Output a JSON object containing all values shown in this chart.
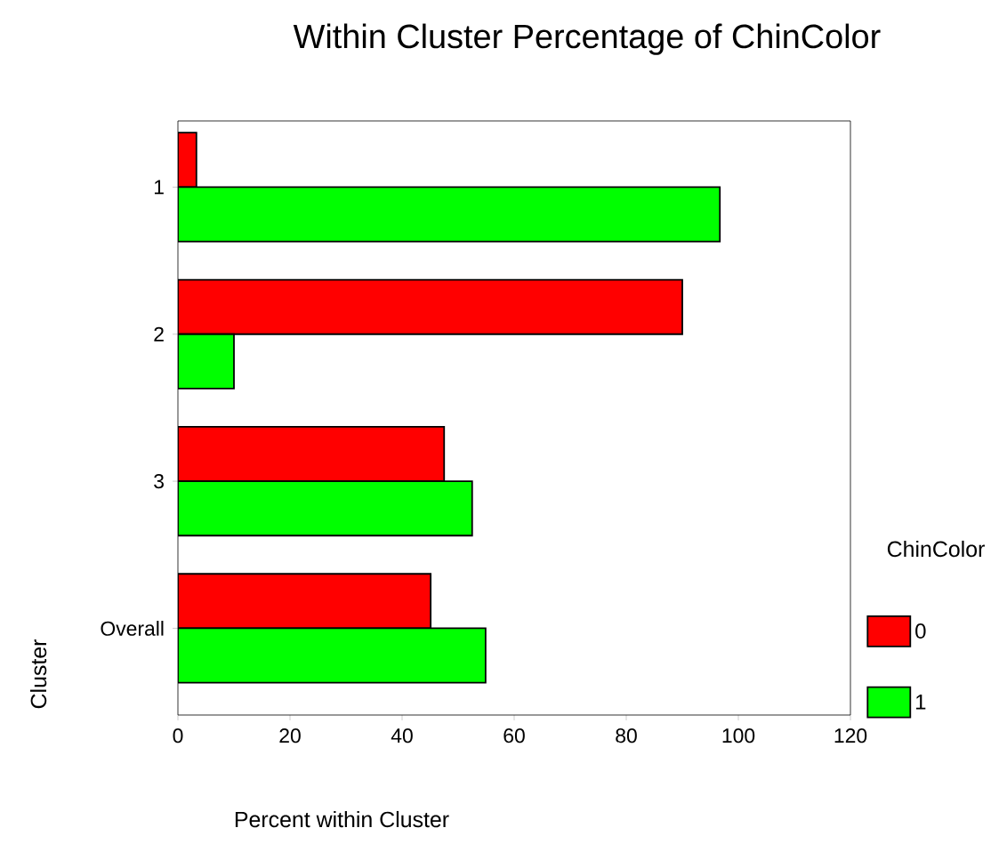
{
  "chart_data": {
    "type": "bar",
    "orientation": "horizontal",
    "title": "Within Cluster Percentage of ChinColor",
    "xlabel": "Percent within Cluster",
    "ylabel": "Cluster",
    "legend_title": "ChinColor",
    "legend": "right",
    "categories": [
      "1",
      "2",
      "3",
      "Overall"
    ],
    "series": [
      {
        "name": "0",
        "color": "#ff0000",
        "values": [
          3.3,
          90,
          47.5,
          45.1
        ]
      },
      {
        "name": "1",
        "color": "#00ff00",
        "values": [
          96.7,
          10,
          52.5,
          54.9
        ]
      }
    ],
    "xlim": [
      0,
      120
    ],
    "xticks": [
      0,
      20,
      40,
      60,
      80,
      100,
      120
    ]
  }
}
